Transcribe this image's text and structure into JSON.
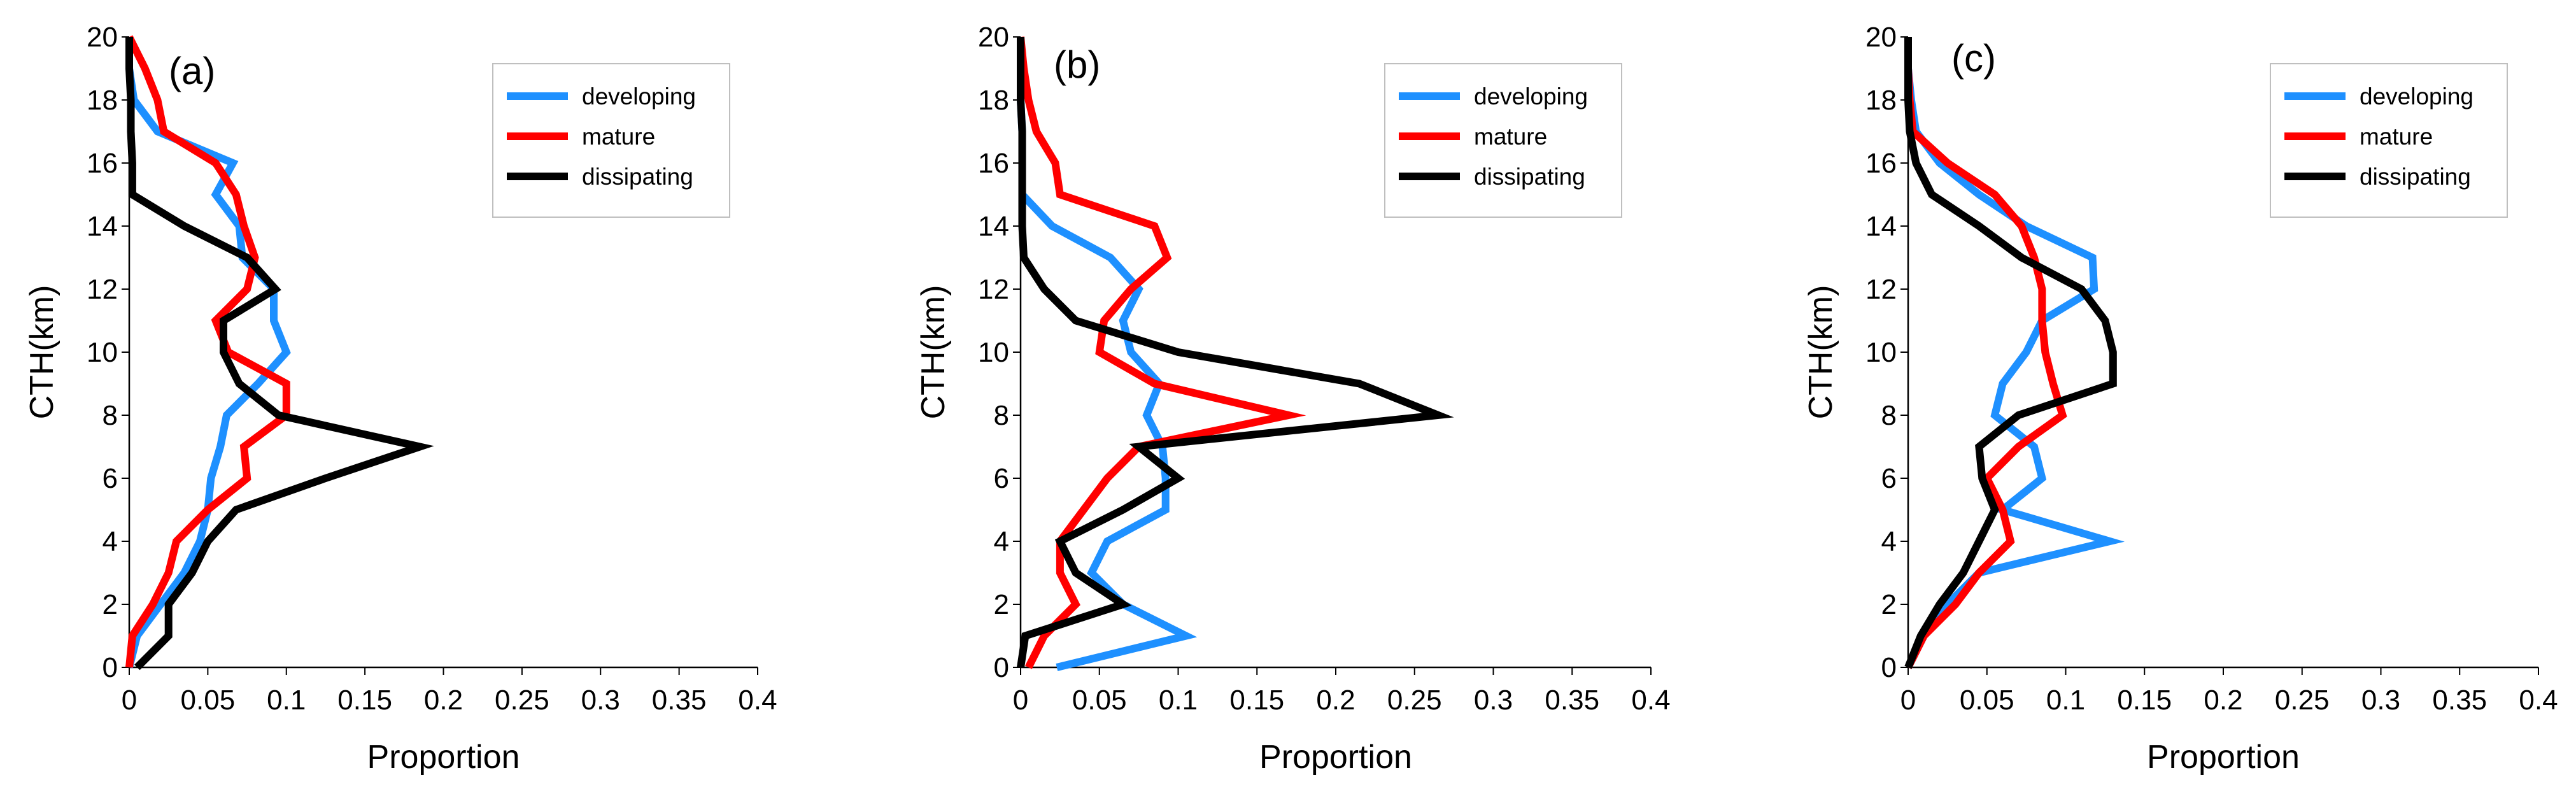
{
  "chart_data": [
    {
      "type": "line",
      "panel_label": "(a)",
      "xlabel": "Proportion",
      "ylabel": "CTH(km)",
      "xlim": [
        0,
        0.4
      ],
      "ylim": [
        0,
        20
      ],
      "x_ticks": [
        "0",
        "0.05",
        "0.1",
        "0.15",
        "0.2",
        "0.25",
        "0.3",
        "0.35",
        "0.4"
      ],
      "y_ticks": [
        "0",
        "2",
        "4",
        "6",
        "8",
        "10",
        "12",
        "14",
        "16",
        "18",
        "20"
      ],
      "y": [
        0,
        1,
        2,
        3,
        4,
        5,
        6,
        7,
        8,
        9,
        10,
        11,
        12,
        13,
        14,
        15,
        16,
        17,
        18,
        19,
        20
      ],
      "legend_position": "top-right",
      "series": [
        {
          "name": "developing",
          "color": "#1E90FF",
          "values": [
            0,
            0.005,
            0.02,
            0.035,
            0.045,
            0.05,
            0.052,
            0.058,
            0.062,
            0.082,
            0.1,
            0.092,
            0.092,
            0.072,
            0.07,
            0.055,
            0.066,
            0.018,
            0.003,
            0,
            0
          ]
        },
        {
          "name": "mature",
          "color": "#FF0000",
          "values": [
            0,
            0.002,
            0.015,
            0.025,
            0.03,
            0.05,
            0.075,
            0.073,
            0.1,
            0.1,
            0.063,
            0.055,
            0.075,
            0.08,
            0.073,
            0.068,
            0.055,
            0.022,
            0.018,
            0.01,
            0
          ]
        },
        {
          "name": "dissipating",
          "color": "#000000",
          "values": [
            0.005,
            0.025,
            0.025,
            0.04,
            0.05,
            0.068,
            0.125,
            0.185,
            0.095,
            0.07,
            0.06,
            0.06,
            0.093,
            0.075,
            0.035,
            0.002,
            0.002,
            0.001,
            0.001,
            0,
            0
          ]
        }
      ]
    },
    {
      "type": "line",
      "panel_label": "(b)",
      "xlabel": "Proportion",
      "ylabel": "CTH(km)",
      "xlim": [
        0,
        0.4
      ],
      "ylim": [
        0,
        20
      ],
      "x_ticks": [
        "0",
        "0.05",
        "0.1",
        "0.15",
        "0.2",
        "0.25",
        "0.3",
        "0.35",
        "0.4"
      ],
      "y_ticks": [
        "0",
        "2",
        "4",
        "6",
        "8",
        "10",
        "12",
        "14",
        "16",
        "18",
        "20"
      ],
      "y": [
        0,
        1,
        2,
        3,
        4,
        5,
        6,
        7,
        8,
        9,
        10,
        11,
        12,
        13,
        14,
        15,
        16,
        17,
        18,
        19,
        20
      ],
      "legend_position": "top-right",
      "series": [
        {
          "name": "developing",
          "color": "#1E90FF",
          "values": [
            0.023,
            0.105,
            0.065,
            0.045,
            0.055,
            0.092,
            0.092,
            0.09,
            0.08,
            0.088,
            0.07,
            0.065,
            0.075,
            0.057,
            0.02,
            0.001,
            0.001,
            0.001,
            0,
            0,
            0
          ]
        },
        {
          "name": "mature",
          "color": "#FF0000",
          "values": [
            0.005,
            0.015,
            0.035,
            0.025,
            0.025,
            0.04,
            0.055,
            0.075,
            0.17,
            0.085,
            0.05,
            0.053,
            0.07,
            0.093,
            0.085,
            0.025,
            0.022,
            0.01,
            0.005,
            0.002,
            0
          ]
        },
        {
          "name": "dissipating",
          "color": "#000000",
          "values": [
            0,
            0.003,
            0.065,
            0.035,
            0.025,
            0.065,
            0.1,
            0.075,
            0.265,
            0.215,
            0.1,
            0.035,
            0.015,
            0.002,
            0.001,
            0.001,
            0.001,
            0.001,
            0,
            0,
            0
          ]
        }
      ]
    },
    {
      "type": "line",
      "panel_label": "(c)",
      "xlabel": "Proportion",
      "ylabel": "CTH(km)",
      "xlim": [
        0,
        0.4
      ],
      "ylim": [
        0,
        20
      ],
      "x_ticks": [
        "0",
        "0.05",
        "0.1",
        "0.15",
        "0.2",
        "0.25",
        "0.3",
        "0.35",
        "0.4"
      ],
      "y_ticks": [
        "0",
        "2",
        "4",
        "6",
        "8",
        "10",
        "12",
        "14",
        "16",
        "18",
        "20"
      ],
      "y": [
        0,
        1,
        2,
        3,
        4,
        5,
        6,
        7,
        8,
        9,
        10,
        11,
        12,
        13,
        14,
        15,
        16,
        17,
        18,
        19,
        20
      ],
      "legend_position": "top-right",
      "series": [
        {
          "name": "developing",
          "color": "#1E90FF",
          "values": [
            0,
            0.01,
            0.025,
            0.045,
            0.128,
            0.06,
            0.085,
            0.08,
            0.055,
            0.06,
            0.075,
            0.085,
            0.118,
            0.117,
            0.075,
            0.045,
            0.02,
            0.005,
            0.002,
            0,
            0
          ]
        },
        {
          "name": "mature",
          "color": "#FF0000",
          "values": [
            0,
            0.01,
            0.03,
            0.045,
            0.065,
            0.06,
            0.05,
            0.07,
            0.098,
            0.092,
            0.087,
            0.085,
            0.085,
            0.08,
            0.072,
            0.055,
            0.025,
            0.003,
            0.001,
            0,
            0
          ]
        },
        {
          "name": "dissipating",
          "color": "#000000",
          "values": [
            0,
            0.008,
            0.02,
            0.035,
            0.045,
            0.055,
            0.047,
            0.045,
            0.07,
            0.13,
            0.13,
            0.125,
            0.11,
            0.072,
            0.045,
            0.015,
            0.005,
            0.001,
            0,
            0,
            0
          ]
        }
      ]
    }
  ]
}
